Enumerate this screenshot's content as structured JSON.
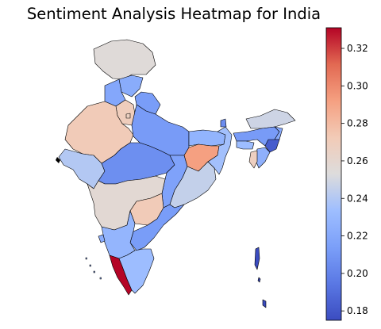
{
  "title": "Sentiment Analysis Heatmap for India",
  "colorbar": {
    "colormap": "coolwarm",
    "min": 0.175,
    "max": 0.331,
    "ticks": [
      "0.18",
      "0.20",
      "0.22",
      "0.24",
      "0.26",
      "0.28",
      "0.30",
      "0.32"
    ],
    "tick_values": [
      0.18,
      0.2,
      0.22,
      0.24,
      0.26,
      0.28,
      0.3,
      0.32
    ]
  },
  "colors": {
    "border": "#000000",
    "background": "#ffffff"
  },
  "regions": [
    {
      "name": "jammu-kashmir",
      "value": 0.255
    },
    {
      "name": "himachal-pradesh",
      "value": 0.222
    },
    {
      "name": "punjab",
      "value": 0.219
    },
    {
      "name": "uttarakhand",
      "value": 0.213
    },
    {
      "name": "haryana",
      "value": 0.27
    },
    {
      "name": "delhi",
      "value": 0.267
    },
    {
      "name": "rajasthan",
      "value": 0.272
    },
    {
      "name": "uttar-pradesh",
      "value": 0.212
    },
    {
      "name": "bihar",
      "value": 0.227
    },
    {
      "name": "gujarat",
      "value": 0.24
    },
    {
      "name": "madhya-pradesh",
      "value": 0.206
    },
    {
      "name": "jharkhand",
      "value": 0.292
    },
    {
      "name": "west-bengal",
      "value": 0.235
    },
    {
      "name": "chhattisgarh",
      "value": 0.216
    },
    {
      "name": "odisha",
      "value": 0.245
    },
    {
      "name": "maharashtra",
      "value": 0.258
    },
    {
      "name": "telangana",
      "value": 0.272
    },
    {
      "name": "andhra-pradesh",
      "value": 0.213
    },
    {
      "name": "karnataka",
      "value": 0.228
    },
    {
      "name": "goa",
      "value": 0.223
    },
    {
      "name": "kerala",
      "value": 0.331
    },
    {
      "name": "tamil-nadu",
      "value": 0.233
    },
    {
      "name": "sikkim",
      "value": 0.205
    },
    {
      "name": "arunachal-pradesh",
      "value": 0.248
    },
    {
      "name": "assam",
      "value": 0.212
    },
    {
      "name": "meghalaya",
      "value": 0.233
    },
    {
      "name": "nagaland",
      "value": 0.221
    },
    {
      "name": "manipur",
      "value": 0.182
    },
    {
      "name": "mizoram",
      "value": 0.225
    },
    {
      "name": "tripura",
      "value": 0.268
    },
    {
      "name": "andaman-nicobar",
      "value": 0.175
    },
    {
      "name": "lakshadweep",
      "value": 0.22
    }
  ]
}
